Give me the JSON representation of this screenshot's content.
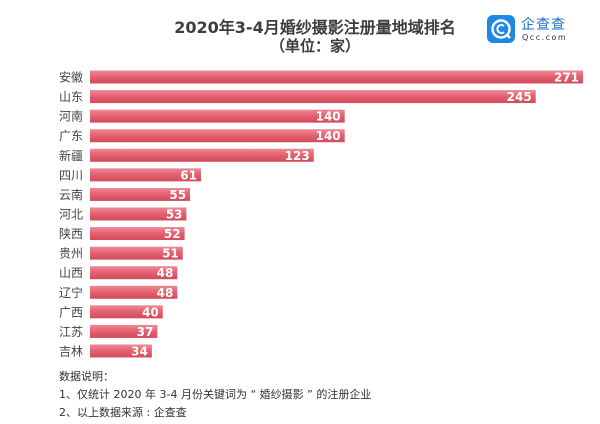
{
  "header": {
    "title": "2020年3-4月婚纱摄影注册量地域排名",
    "subtitle": "（单位：家）"
  },
  "logo": {
    "name_cn": "企查查",
    "name_en": "Qcc.com",
    "brand_color": "#1e88e5"
  },
  "chart_data": {
    "type": "bar",
    "orientation": "horizontal",
    "title": "2020年3-4月婚纱摄影注册量地域排名",
    "subtitle": "（单位：家）",
    "categories": [
      "安徽",
      "山东",
      "河南",
      "广东",
      "新疆",
      "四川",
      "云南",
      "河北",
      "陕西",
      "贵州",
      "山西",
      "辽宁",
      "广西",
      "江苏",
      "吉林"
    ],
    "values": [
      271,
      245,
      140,
      140,
      123,
      61,
      55,
      53,
      52,
      51,
      48,
      48,
      40,
      37,
      34
    ],
    "xlim": [
      0,
      271
    ],
    "grid": false,
    "bar_color": "#e05a6a",
    "label_color": "#ffffff"
  },
  "notes": {
    "heading": "数据说明：",
    "items": [
      "1、仅统计 2020 年 3-4 月份关键词为 “ 婚纱摄影 ” 的注册企业",
      "2、以上数据来源 : 企查查"
    ]
  }
}
